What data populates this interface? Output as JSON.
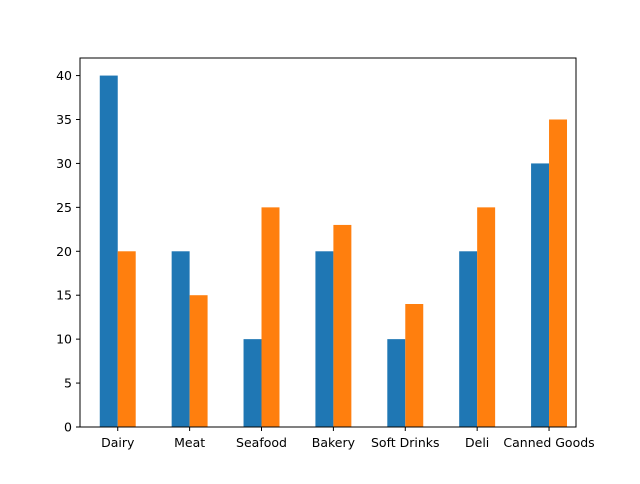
{
  "chart_data": {
    "type": "bar",
    "title": "",
    "xlabel": "",
    "ylabel": "",
    "categories": [
      "Dairy",
      "Meat",
      "Seafood",
      "Bakery",
      "Soft Drinks",
      "Deli",
      "Canned Goods"
    ],
    "series": [
      {
        "values": [
          40,
          20,
          10,
          20,
          10,
          20,
          30
        ],
        "color": "#1f77b4"
      },
      {
        "values": [
          20,
          15,
          25,
          23,
          14,
          25,
          35
        ],
        "color": "#ff7f0e"
      }
    ],
    "ylim": [
      0,
      42
    ],
    "yticks": [
      0,
      5,
      10,
      15,
      20,
      25,
      30,
      35,
      40
    ],
    "grid": false,
    "legend": "none"
  }
}
